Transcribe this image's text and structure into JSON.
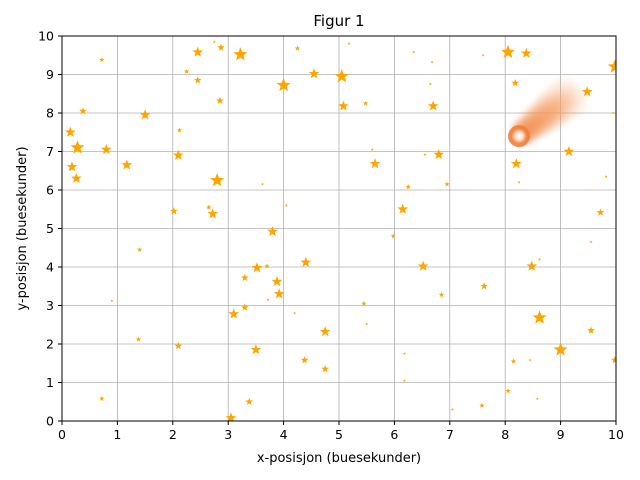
{
  "chart_data": {
    "type": "scatter",
    "title": "Figur 1",
    "xlabel": "x-posisjon (buesekunder)",
    "ylabel": "y-posisjon (buesekunder)",
    "xlim": [
      0,
      10
    ],
    "ylim": [
      0,
      10
    ],
    "xticks": [
      "0",
      "1",
      "2",
      "3",
      "4",
      "5",
      "6",
      "7",
      "8",
      "9",
      "10"
    ],
    "yticks": [
      "0",
      "1",
      "2",
      "3",
      "4",
      "5",
      "6",
      "7",
      "8",
      "9",
      "10"
    ],
    "grid": true,
    "marker": "star",
    "star_color": "#ffa500",
    "comet": {
      "x": 8.25,
      "y": 7.4,
      "tail_direction": "up-right",
      "color": "#f08a4b"
    },
    "series": [
      {
        "points": [
          {
            "x": 0.15,
            "y": 7.5,
            "s": "m"
          },
          {
            "x": 0.28,
            "y": 7.1,
            "s": "l"
          },
          {
            "x": 0.18,
            "y": 6.6,
            "s": "m"
          },
          {
            "x": 0.26,
            "y": 6.3,
            "s": "m"
          },
          {
            "x": 0.38,
            "y": 8.05,
            "s": "s"
          },
          {
            "x": 0.72,
            "y": 9.38,
            "s": "xs"
          },
          {
            "x": 0.8,
            "y": 7.05,
            "s": "m"
          },
          {
            "x": 0.72,
            "y": 0.58,
            "s": "xs"
          },
          {
            "x": 0.9,
            "y": 3.12,
            "s": "xxs"
          },
          {
            "x": 1.17,
            "y": 6.65,
            "s": "m"
          },
          {
            "x": 1.38,
            "y": 2.12,
            "s": "xs"
          },
          {
            "x": 1.4,
            "y": 4.45,
            "s": "xs"
          },
          {
            "x": 1.5,
            "y": 7.95,
            "s": "m"
          },
          {
            "x": 2.02,
            "y": 5.45,
            "s": "s"
          },
          {
            "x": 2.1,
            "y": 6.9,
            "s": "m"
          },
          {
            "x": 2.1,
            "y": 1.95,
            "s": "s"
          },
          {
            "x": 2.12,
            "y": 7.55,
            "s": "xs"
          },
          {
            "x": 2.25,
            "y": 9.08,
            "s": "xs"
          },
          {
            "x": 2.45,
            "y": 9.58,
            "s": "m"
          },
          {
            "x": 2.45,
            "y": 8.85,
            "s": "s"
          },
          {
            "x": 2.65,
            "y": 5.55,
            "s": "xs"
          },
          {
            "x": 2.72,
            "y": 5.38,
            "s": "m"
          },
          {
            "x": 2.75,
            "y": 9.85,
            "s": "xxs"
          },
          {
            "x": 2.8,
            "y": 6.25,
            "s": "l"
          },
          {
            "x": 2.85,
            "y": 8.32,
            "s": "s"
          },
          {
            "x": 2.87,
            "y": 9.7,
            "s": "s"
          },
          {
            "x": 3.05,
            "y": 0.08,
            "s": "m"
          },
          {
            "x": 3.1,
            "y": 2.78,
            "s": "m"
          },
          {
            "x": 3.22,
            "y": 9.52,
            "s": "l"
          },
          {
            "x": 3.3,
            "y": 3.72,
            "s": "s"
          },
          {
            "x": 3.3,
            "y": 2.95,
            "s": "s"
          },
          {
            "x": 3.38,
            "y": 0.5,
            "s": "s"
          },
          {
            "x": 3.5,
            "y": 1.85,
            "s": "m"
          },
          {
            "x": 3.52,
            "y": 3.98,
            "s": "m"
          },
          {
            "x": 3.62,
            "y": 6.15,
            "s": "xxs"
          },
          {
            "x": 3.7,
            "y": 4.02,
            "s": "xs"
          },
          {
            "x": 3.72,
            "y": 3.15,
            "s": "xxs"
          },
          {
            "x": 3.8,
            "y": 4.92,
            "s": "m"
          },
          {
            "x": 3.88,
            "y": 3.62,
            "s": "m"
          },
          {
            "x": 3.92,
            "y": 3.3,
            "s": "m"
          },
          {
            "x": 4.0,
            "y": 8.72,
            "s": "l"
          },
          {
            "x": 4.05,
            "y": 5.6,
            "s": "xxs"
          },
          {
            "x": 4.2,
            "y": 2.8,
            "s": "xxs"
          },
          {
            "x": 4.25,
            "y": 9.68,
            "s": "xs"
          },
          {
            "x": 4.38,
            "y": 1.58,
            "s": "s"
          },
          {
            "x": 4.4,
            "y": 4.12,
            "s": "m"
          },
          {
            "x": 4.55,
            "y": 9.02,
            "s": "m"
          },
          {
            "x": 4.75,
            "y": 2.32,
            "s": "m"
          },
          {
            "x": 4.75,
            "y": 1.35,
            "s": "s"
          },
          {
            "x": 5.05,
            "y": 8.95,
            "s": "l"
          },
          {
            "x": 5.08,
            "y": 8.18,
            "s": "m"
          },
          {
            "x": 5.18,
            "y": 9.8,
            "s": "xxs"
          },
          {
            "x": 5.45,
            "y": 3.05,
            "s": "xs"
          },
          {
            "x": 5.48,
            "y": 8.25,
            "s": "xs"
          },
          {
            "x": 5.5,
            "y": 2.52,
            "s": "xxs"
          },
          {
            "x": 5.6,
            "y": 7.05,
            "s": "xxs"
          },
          {
            "x": 5.65,
            "y": 6.68,
            "s": "m"
          },
          {
            "x": 5.98,
            "y": 4.8,
            "s": "xs"
          },
          {
            "x": 6.15,
            "y": 5.5,
            "s": "m"
          },
          {
            "x": 6.18,
            "y": 1.05,
            "s": "xxs"
          },
          {
            "x": 6.18,
            "y": 1.75,
            "s": "xxs"
          },
          {
            "x": 6.25,
            "y": 6.08,
            "s": "xs"
          },
          {
            "x": 6.35,
            "y": 9.58,
            "s": "xxs"
          },
          {
            "x": 6.52,
            "y": 4.02,
            "s": "m"
          },
          {
            "x": 6.55,
            "y": 6.92,
            "s": "xxs"
          },
          {
            "x": 6.65,
            "y": 8.75,
            "s": "xxs"
          },
          {
            "x": 6.68,
            "y": 9.32,
            "s": "xxs"
          },
          {
            "x": 6.7,
            "y": 8.18,
            "s": "m"
          },
          {
            "x": 6.8,
            "y": 6.92,
            "s": "m"
          },
          {
            "x": 6.85,
            "y": 3.28,
            "s": "xs"
          },
          {
            "x": 6.95,
            "y": 6.15,
            "s": "xs"
          },
          {
            "x": 7.05,
            "y": 0.3,
            "s": "xxs"
          },
          {
            "x": 7.58,
            "y": 0.4,
            "s": "xs"
          },
          {
            "x": 7.6,
            "y": 9.5,
            "s": "xxs"
          },
          {
            "x": 7.62,
            "y": 3.5,
            "s": "s"
          },
          {
            "x": 8.05,
            "y": 0.78,
            "s": "xs"
          },
          {
            "x": 8.05,
            "y": 9.58,
            "s": "l"
          },
          {
            "x": 8.15,
            "y": 1.55,
            "s": "xs"
          },
          {
            "x": 8.18,
            "y": 8.78,
            "s": "s"
          },
          {
            "x": 8.2,
            "y": 6.68,
            "s": "m"
          },
          {
            "x": 8.25,
            "y": 6.2,
            "s": "xxs"
          },
          {
            "x": 8.38,
            "y": 9.55,
            "s": "m"
          },
          {
            "x": 8.45,
            "y": 1.58,
            "s": "xxs"
          },
          {
            "x": 8.48,
            "y": 4.02,
            "s": "m"
          },
          {
            "x": 8.58,
            "y": 0.58,
            "s": "xxs"
          },
          {
            "x": 8.62,
            "y": 2.68,
            "s": "l"
          },
          {
            "x": 8.62,
            "y": 4.2,
            "s": "xxs"
          },
          {
            "x": 9.0,
            "y": 1.85,
            "s": "l"
          },
          {
            "x": 9.15,
            "y": 7.0,
            "s": "m"
          },
          {
            "x": 9.48,
            "y": 8.55,
            "s": "m"
          },
          {
            "x": 9.55,
            "y": 2.35,
            "s": "s"
          },
          {
            "x": 9.55,
            "y": 4.65,
            "s": "xxs"
          },
          {
            "x": 9.72,
            "y": 5.42,
            "s": "s"
          },
          {
            "x": 9.82,
            "y": 6.35,
            "s": "xxs"
          },
          {
            "x": 9.95,
            "y": 8.0,
            "s": "xxs"
          },
          {
            "x": 9.98,
            "y": 9.2,
            "s": "l"
          },
          {
            "x": 9.98,
            "y": 1.58,
            "s": "s"
          }
        ]
      }
    ]
  }
}
